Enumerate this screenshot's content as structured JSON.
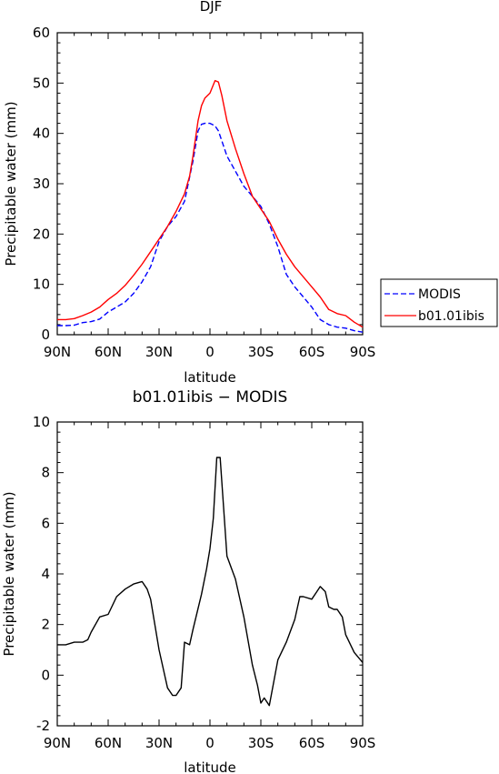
{
  "chart_data": [
    {
      "type": "line",
      "title": "DJF",
      "xlabel": "latitude",
      "ylabel": "Precipitable water (mm)",
      "xlim": [
        90,
        -90
      ],
      "ylim": [
        0,
        60
      ],
      "xticks": [
        {
          "value": 90,
          "label": "90N"
        },
        {
          "value": 60,
          "label": "60N"
        },
        {
          "value": 30,
          "label": "30N"
        },
        {
          "value": 0,
          "label": "0"
        },
        {
          "value": -30,
          "label": "30S"
        },
        {
          "value": -60,
          "label": "60S"
        },
        {
          "value": -90,
          "label": "90S"
        }
      ],
      "yticks": [
        0,
        10,
        20,
        30,
        40,
        50,
        60
      ],
      "legend_position": "right",
      "series": [
        {
          "name": "MODIS",
          "color": "#0000ff",
          "dash": "dashed",
          "x": [
            90,
            85,
            80,
            75,
            70,
            65,
            60,
            55,
            50,
            45,
            40,
            35,
            30,
            25,
            20,
            15,
            10,
            7,
            5,
            3,
            0,
            -3,
            -5,
            -7,
            -10,
            -15,
            -20,
            -25,
            -30,
            -35,
            -40,
            -45,
            -50,
            -55,
            -60,
            -65,
            -70,
            -75,
            -80,
            -85,
            -90
          ],
          "values": [
            1.8,
            1.8,
            1.9,
            2.4,
            2.6,
            3.1,
            4.5,
            5.5,
            6.5,
            8.2,
            10.5,
            13.5,
            18.5,
            21.5,
            23.5,
            26.5,
            34.5,
            40.5,
            41.8,
            42.0,
            42.0,
            41.5,
            40.5,
            38.5,
            35.5,
            32.5,
            29.5,
            27.5,
            25.5,
            22.0,
            17.5,
            12.0,
            9.5,
            7.5,
            5.5,
            3.0,
            2.0,
            1.5,
            1.3,
            0.8,
            0.5
          ]
        },
        {
          "name": "b01.01ibis",
          "color": "#ff0000",
          "dash": "solid",
          "x": [
            90,
            85,
            80,
            75,
            70,
            65,
            60,
            55,
            50,
            45,
            40,
            35,
            30,
            25,
            20,
            15,
            12,
            10,
            7,
            5,
            3,
            0,
            -3,
            -5,
            -7,
            -10,
            -15,
            -20,
            -25,
            -30,
            -35,
            -40,
            -45,
            -50,
            -55,
            -60,
            -65,
            -70,
            -75,
            -80,
            -85,
            -90
          ],
          "values": [
            3.0,
            3.0,
            3.2,
            3.8,
            4.5,
            5.5,
            7.0,
            8.2,
            9.8,
            11.8,
            14.0,
            16.5,
            19.0,
            21.5,
            24.5,
            28.0,
            31.5,
            35.5,
            42.5,
            45.5,
            47.0,
            48.0,
            50.5,
            50.2,
            47.5,
            42.5,
            37.0,
            32.0,
            27.5,
            25.0,
            22.5,
            19.0,
            16.0,
            13.5,
            11.5,
            9.5,
            7.5,
            5.0,
            4.2,
            3.8,
            2.5,
            1.5
          ]
        }
      ]
    },
    {
      "type": "line",
      "title": "b01.01ibis − MODIS",
      "xlabel": "latitude",
      "ylabel": "Precipitable water (mm)",
      "xlim": [
        90,
        -90
      ],
      "ylim": [
        -2,
        10
      ],
      "xticks": [
        {
          "value": 90,
          "label": "90N"
        },
        {
          "value": 60,
          "label": "60N"
        },
        {
          "value": 30,
          "label": "30N"
        },
        {
          "value": 0,
          "label": "0"
        },
        {
          "value": -30,
          "label": "30S"
        },
        {
          "value": -60,
          "label": "60S"
        },
        {
          "value": -90,
          "label": "90S"
        }
      ],
      "yticks": [
        -2,
        0,
        2,
        4,
        6,
        8,
        10
      ],
      "series": [
        {
          "name": "",
          "color": "#000000",
          "dash": "solid",
          "x": [
            90,
            85,
            80,
            75,
            72,
            70,
            65,
            60,
            55,
            50,
            45,
            40,
            37,
            35,
            30,
            25,
            22,
            20,
            17,
            15,
            12,
            10,
            5,
            2,
            0,
            -2,
            -4,
            -6,
            -10,
            -15,
            -20,
            -25,
            -28,
            -30,
            -32,
            -35,
            -40,
            -45,
            -50,
            -53,
            -55,
            -60,
            -63,
            -65,
            -68,
            -70,
            -73,
            -75,
            -78,
            -80,
            -85,
            -90
          ],
          "values": [
            1.2,
            1.2,
            1.3,
            1.3,
            1.4,
            1.7,
            2.3,
            2.4,
            3.1,
            3.4,
            3.6,
            3.7,
            3.4,
            3.0,
            1.0,
            -0.5,
            -0.8,
            -0.8,
            -0.5,
            1.3,
            1.2,
            1.8,
            3.2,
            4.2,
            5.0,
            6.2,
            8.6,
            8.6,
            4.7,
            3.8,
            2.3,
            0.4,
            -0.4,
            -1.1,
            -0.9,
            -1.2,
            0.6,
            1.3,
            2.2,
            3.1,
            3.1,
            3.0,
            3.3,
            3.5,
            3.3,
            2.7,
            2.6,
            2.6,
            2.3,
            1.6,
            0.9,
            0.5
          ]
        }
      ]
    }
  ]
}
